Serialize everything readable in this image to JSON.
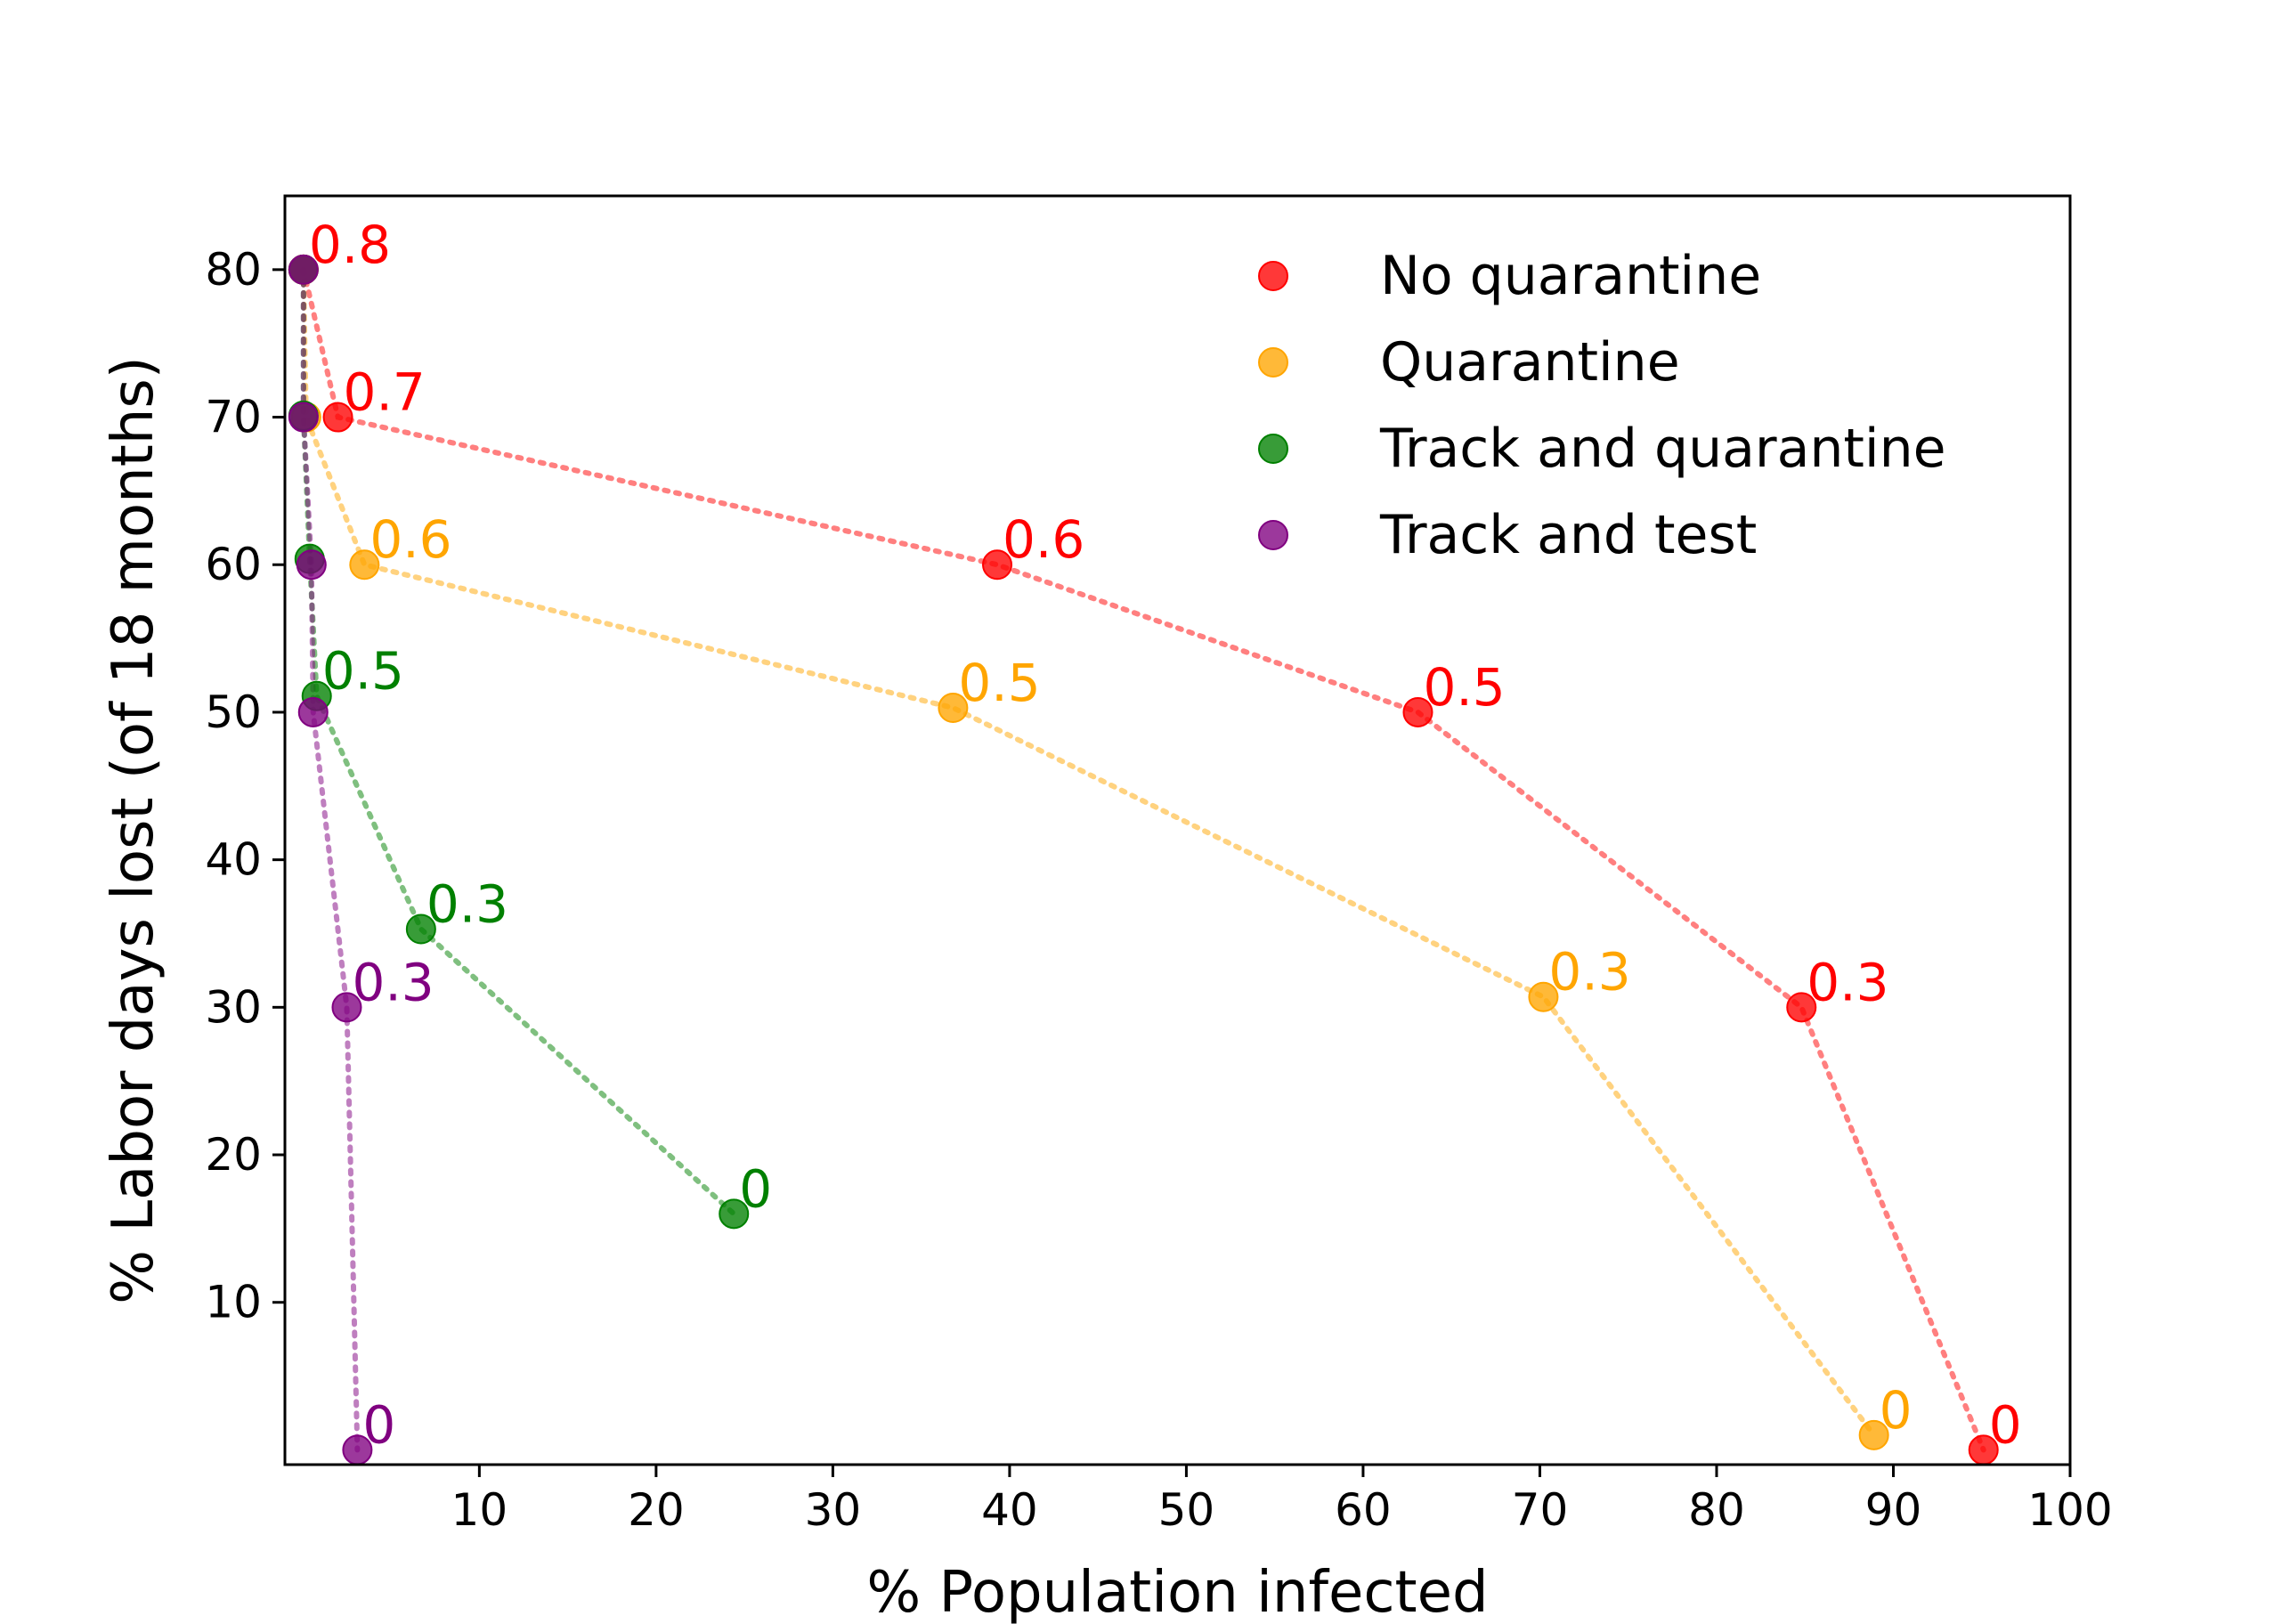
{
  "chart_data": {
    "type": "scatter",
    "title": "",
    "xlabel": "% Population infected",
    "ylabel": "% Labor days lost (of 18 months)",
    "xlim": [
      -1,
      100
    ],
    "ylim": [
      -1,
      85
    ],
    "xticks": [
      10,
      20,
      30,
      40,
      50,
      60,
      70,
      80,
      90,
      100
    ],
    "xtick_labels": [
      "10",
      "20",
      "30",
      "40",
      "50",
      "60",
      "70",
      "80",
      "90",
      "100"
    ],
    "yticks": [
      10,
      20,
      30,
      40,
      50,
      60,
      70,
      80
    ],
    "ytick_labels": [
      "10",
      "20",
      "30",
      "40",
      "50",
      "60",
      "70",
      "80"
    ],
    "grid": false,
    "legend_position": "top-right",
    "series": [
      {
        "name": "No quarantine",
        "color": "#ff0000",
        "x": [
          0.05,
          2.0,
          39.3,
          63.1,
          84.8,
          95.1
        ],
        "y": [
          80,
          70,
          60,
          50,
          30,
          0
        ],
        "labels": [
          "0.8",
          "0.7",
          "0.6",
          "0.5",
          "0.3",
          "0"
        ]
      },
      {
        "name": "Quarantine",
        "color": "#ffa500",
        "x": [
          0.05,
          0.2,
          3.5,
          36.8,
          70.2,
          88.9
        ],
        "y": [
          80,
          70,
          60,
          50.3,
          30.7,
          1.0
        ],
        "labels": [
          "",
          "",
          "0.6",
          "0.5",
          "0.3",
          "0"
        ]
      },
      {
        "name": "Track and quarantine",
        "color": "#008000",
        "x": [
          0.05,
          0.05,
          0.4,
          0.8,
          6.7,
          24.4
        ],
        "y": [
          80,
          70.1,
          60.4,
          51.1,
          35.3,
          16.0
        ],
        "labels": [
          "",
          "",
          "",
          "0.5",
          "0.3",
          "0"
        ]
      },
      {
        "name": "Track and test",
        "color": "#800080",
        "x": [
          0.05,
          0.05,
          0.5,
          0.6,
          2.5,
          3.1
        ],
        "y": [
          80,
          70,
          60,
          50,
          30,
          0
        ],
        "labels": [
          "",
          "",
          "",
          "",
          "0.3",
          "0"
        ]
      }
    ]
  }
}
